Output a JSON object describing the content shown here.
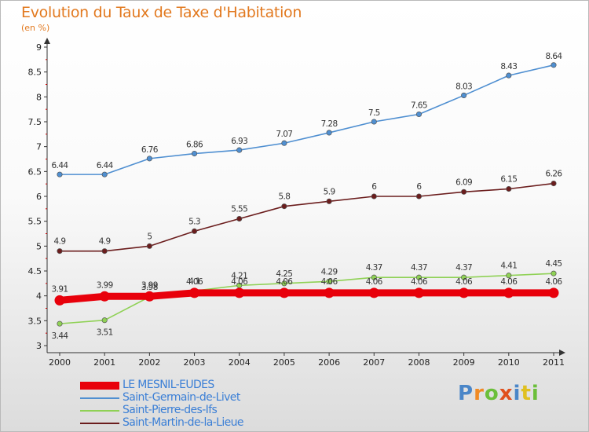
{
  "title": "Evolution du Taux de Taxe d'Habitation",
  "unit": "(en %)",
  "brand": {
    "text": "Proxiti",
    "letter_colors": [
      "#4a86c8",
      "#f08a24",
      "#6bbf3a",
      "#e0501d",
      "#4a86c8",
      "#e0c020",
      "#6bbf3a"
    ]
  },
  "chart_data": {
    "type": "line",
    "x": [
      "2000",
      "2001",
      "2002",
      "2003",
      "2004",
      "2005",
      "2006",
      "2007",
      "2008",
      "2009",
      "2010",
      "2011"
    ],
    "ylim": [
      3,
      9
    ],
    "yticks": [
      "3",
      "3.5",
      "4",
      "4.5",
      "5",
      "5.5",
      "6",
      "6.5",
      "7",
      "7.5",
      "8",
      "8.5",
      "9"
    ],
    "grid": false,
    "legend_position": "bottom-left",
    "series": [
      {
        "name": "LE MESNIL-EUDES",
        "color": "#e8000b",
        "values": [
          3.91,
          3.99,
          3.99,
          4.06,
          4.06,
          4.06,
          4.06,
          4.06,
          4.06,
          4.06,
          4.06,
          4.06
        ],
        "labels": [
          "3.91",
          "3.99",
          "3.99",
          "4.06",
          "4.06",
          "4.06",
          "4.06",
          "4.06",
          "4.06",
          "4.06",
          "4.06",
          "4.06"
        ]
      },
      {
        "name": "Saint-Germain-de-Livet",
        "color": "#4f8fd1",
        "values": [
          6.44,
          6.44,
          6.76,
          6.86,
          6.93,
          7.07,
          7.28,
          7.5,
          7.65,
          8.03,
          8.43,
          8.64
        ],
        "labels": [
          "6.44",
          "6.44",
          "6.76",
          "6.86",
          "6.93",
          "7.07",
          "7.28",
          "7.5",
          "7.65",
          "8.03",
          "8.43",
          "8.64"
        ]
      },
      {
        "name": "Saint-Pierre-des-Ifs",
        "color": "#8fd155",
        "values": [
          3.44,
          3.51,
          3.98,
          4.1,
          4.21,
          4.25,
          4.29,
          4.37,
          4.37,
          4.37,
          4.41,
          4.45
        ],
        "labels": [
          "3.44",
          "3.51",
          "3.98",
          "4.1",
          "4.21",
          "4.25",
          "4.29",
          "4.37",
          "4.37",
          "4.37",
          "4.41",
          "4.45"
        ]
      },
      {
        "name": "Saint-Martin-de-la-Lieue",
        "color": "#6b1d1d",
        "values": [
          4.9,
          4.9,
          5,
          5.3,
          5.55,
          5.8,
          5.9,
          6,
          6,
          6.09,
          6.15,
          6.26
        ],
        "labels": [
          "4.9",
          "4.9",
          "5",
          "5.3",
          "5.55",
          "5.8",
          "5.9",
          "6",
          "6",
          "6.09",
          "6.15",
          "6.26"
        ]
      }
    ]
  }
}
